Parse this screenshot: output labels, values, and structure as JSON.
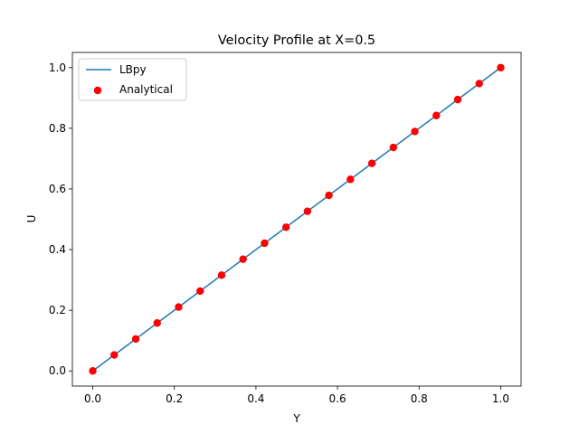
{
  "chart_data": {
    "type": "line",
    "title": "Velocity Profile at X=0.5",
    "xlabel": "Y",
    "ylabel": "U",
    "xlim": [
      -0.05,
      1.05
    ],
    "ylim": [
      -0.05,
      1.05
    ],
    "xticks": [
      0.0,
      0.2,
      0.4,
      0.6,
      0.8,
      1.0
    ],
    "yticks": [
      0.0,
      0.2,
      0.4,
      0.6,
      0.8,
      1.0
    ],
    "xtick_labels": [
      "0.0",
      "0.2",
      "0.4",
      "0.6",
      "0.8",
      "1.0"
    ],
    "ytick_labels": [
      "0.0",
      "0.2",
      "0.4",
      "0.6",
      "0.8",
      "1.0"
    ],
    "grid": false,
    "legend": {
      "placement": "upper-left",
      "entries": [
        "LBpy",
        "Analytical"
      ]
    },
    "series": [
      {
        "name": "LBpy",
        "kind": "line",
        "color": "#1f77b4",
        "x": [
          0.0,
          1.0
        ],
        "y": [
          0.0,
          1.0
        ]
      },
      {
        "name": "Analytical",
        "kind": "scatter",
        "color": "#ff0000",
        "x": [
          0.0,
          0.0526,
          0.1053,
          0.1579,
          0.2105,
          0.2632,
          0.3158,
          0.3684,
          0.4211,
          0.4737,
          0.5263,
          0.5789,
          0.6316,
          0.6842,
          0.7368,
          0.7895,
          0.8421,
          0.8947,
          0.9474,
          1.0
        ],
        "y": [
          0.0,
          0.0526,
          0.1053,
          0.1579,
          0.2105,
          0.2632,
          0.3158,
          0.3684,
          0.4211,
          0.4737,
          0.5263,
          0.5789,
          0.6316,
          0.6842,
          0.7368,
          0.7895,
          0.8421,
          0.8947,
          0.9474,
          1.0
        ]
      }
    ]
  }
}
